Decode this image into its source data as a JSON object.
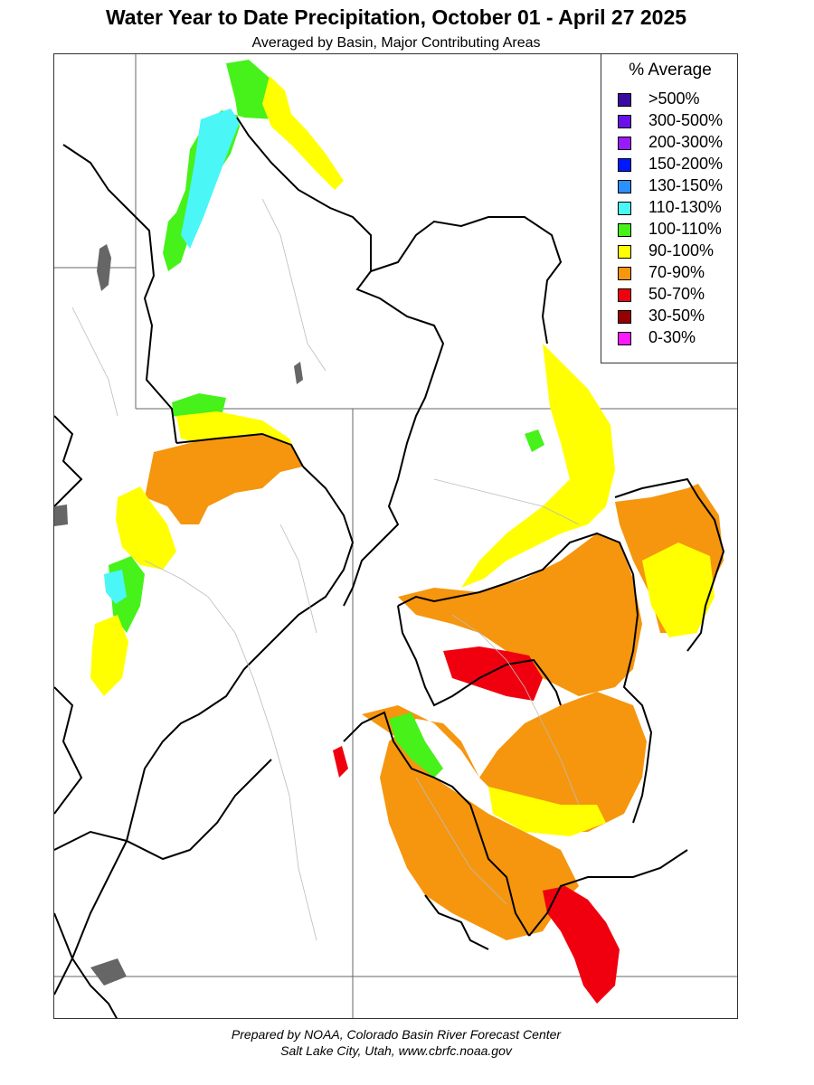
{
  "header": {
    "title": "Water Year to Date Precipitation, October 01  - April 27 2025",
    "subtitle": "Averaged by Basin, Major Contributing Areas"
  },
  "legend": {
    "title": "% Average",
    "items": [
      {
        "label": ">500%",
        "color": "#3a0aa0"
      },
      {
        "label": "300-500%",
        "color": "#6a10e8"
      },
      {
        "label": "200-300%",
        "color": "#9a19ff"
      },
      {
        "label": "150-200%",
        "color": "#0018ff"
      },
      {
        "label": "130-150%",
        "color": "#2a8fff"
      },
      {
        "label": "110-130%",
        "color": "#4af6f6"
      },
      {
        "label": "100-110%",
        "color": "#46f21a"
      },
      {
        "label": "90-100%",
        "color": "#ffff00"
      },
      {
        "label": "70-90%",
        "color": "#f5960e"
      },
      {
        "label": "50-70%",
        "color": "#f0000f"
      },
      {
        "label": "30-50%",
        "color": "#960000"
      },
      {
        "label": "0-30%",
        "color": "#ff19ff"
      }
    ]
  },
  "footer": {
    "credit_line1": "Prepared by NOAA, Colorado Basin River Forecast Center",
    "credit_line2": "Salt Lake City, Utah, www.cbrfc.noaa.gov"
  }
}
